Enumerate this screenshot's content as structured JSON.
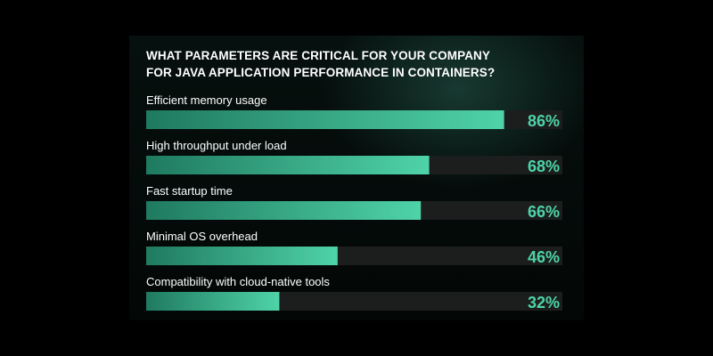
{
  "header": {
    "title_line1": "WHAT PARAMETERS ARE CRITICAL FOR YOUR COMPANY",
    "title_line2": "FOR JAVA APPLICATION PERFORMANCE IN CONTAINERS?"
  },
  "colors": {
    "bar_start": "#1f7a5f",
    "bar_end": "#4fd3a8",
    "track": "#1b1e1d",
    "value_text": "#4ed3a8",
    "label_text": "#ffffff",
    "background": "#000000"
  },
  "chart_data": {
    "type": "bar",
    "orientation": "horizontal",
    "title": "WHAT PARAMETERS ARE CRITICAL FOR YOUR COMPANY FOR JAVA APPLICATION PERFORMANCE IN CONTAINERS?",
    "categories": [
      "Efficient memory usage",
      "High throughput under load",
      "Fast startup time",
      "Minimal OS overhead",
      "Compatibility with cloud-native tools"
    ],
    "values": [
      86,
      68,
      66,
      46,
      32
    ],
    "value_labels": [
      "86%",
      "68%",
      "66%",
      "46%",
      "32%"
    ],
    "unit": "%",
    "xlim": [
      0,
      100
    ],
    "grid": false,
    "legend": "none"
  }
}
